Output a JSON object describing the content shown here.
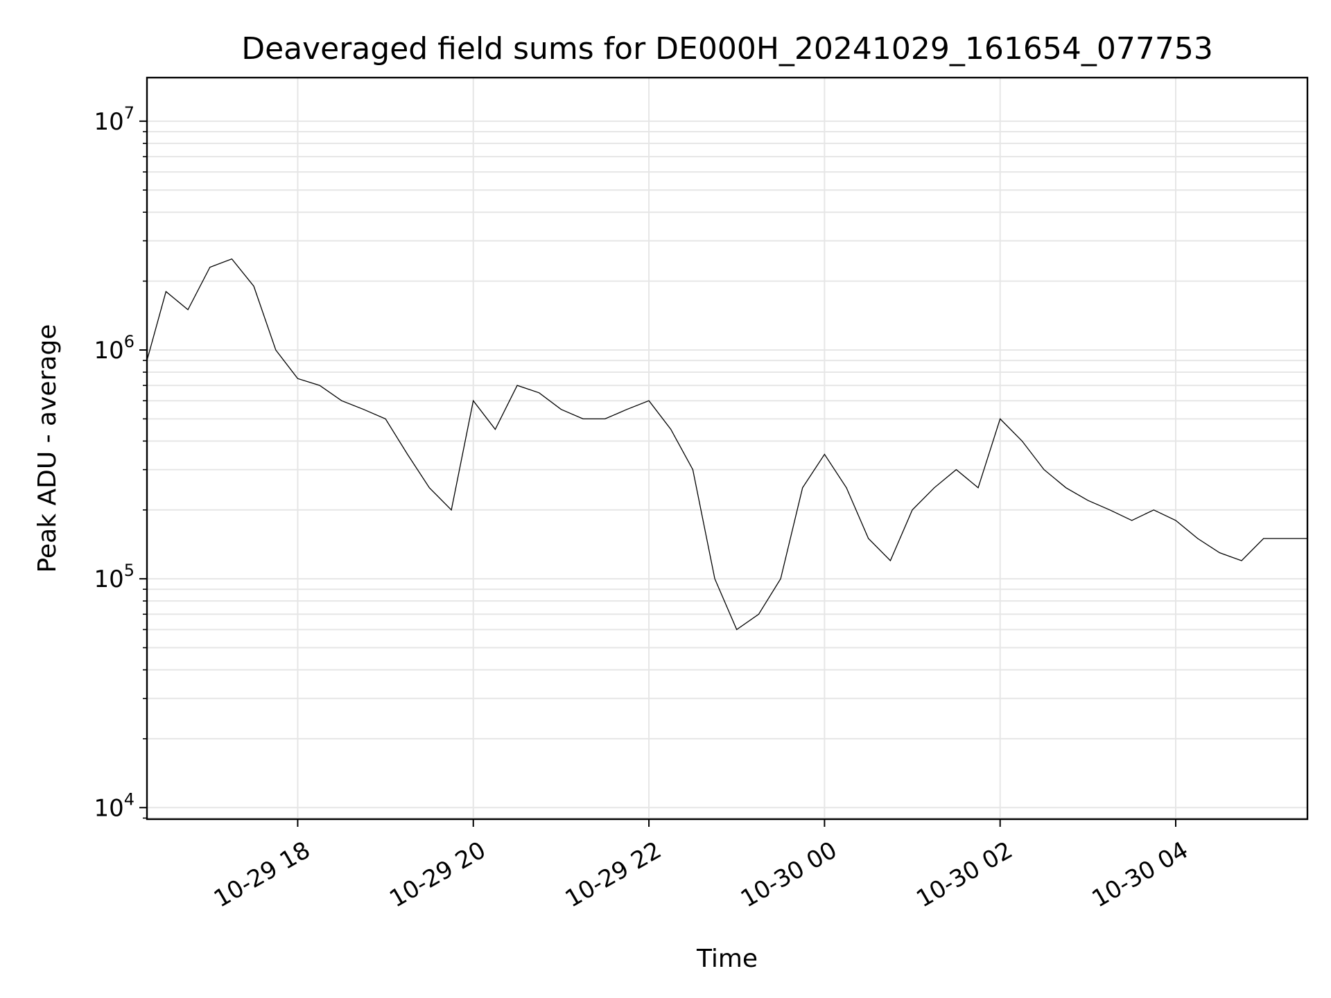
{
  "chart_data": {
    "type": "line",
    "title": "Deaveraged field sums for DE000H_20241029_161654_077753",
    "xlabel": "Time",
    "ylabel": "Peak ADU - average",
    "yscale": "log",
    "ylim": [
      8900,
      15500000
    ],
    "xlim": [
      "2024-10-29 16:17",
      "2024-10-30 05:30"
    ],
    "grid": true,
    "line_color": "#000000",
    "grid_color": "#e6e6e6",
    "x_ticks": [
      "2024-10-29 18:00",
      "2024-10-29 20:00",
      "2024-10-29 22:00",
      "2024-10-30 00:00",
      "2024-10-30 02:00",
      "2024-10-30 04:00"
    ],
    "x_tick_labels": [
      "10-29 18",
      "10-29 20",
      "10-29 22",
      "10-30 00",
      "10-30 02",
      "10-30 04"
    ],
    "y_ticks": [
      10000,
      100000,
      1000000,
      10000000
    ],
    "y_tick_labels": [
      {
        "base": "10",
        "exp": "4"
      },
      {
        "base": "10",
        "exp": "5"
      },
      {
        "base": "10",
        "exp": "6"
      },
      {
        "base": "10",
        "exp": "7"
      }
    ],
    "series": [
      {
        "points": [
          [
            "2024-10-29 16:17",
            900000
          ],
          [
            "2024-10-29 16:30",
            1800000
          ],
          [
            "2024-10-29 16:45",
            1500000
          ],
          [
            "2024-10-29 17:00",
            2300000
          ],
          [
            "2024-10-29 17:15",
            2500000
          ],
          [
            "2024-10-29 17:30",
            1900000
          ],
          [
            "2024-10-29 17:45",
            1000000
          ],
          [
            "2024-10-29 18:00",
            750000
          ],
          [
            "2024-10-29 18:15",
            700000
          ],
          [
            "2024-10-29 18:30",
            600000
          ],
          [
            "2024-10-29 18:45",
            550000
          ],
          [
            "2024-10-29 19:00",
            500000
          ],
          [
            "2024-10-29 19:15",
            350000
          ],
          [
            "2024-10-29 19:30",
            250000
          ],
          [
            "2024-10-29 19:45",
            200000
          ],
          [
            "2024-10-29 20:00",
            600000
          ],
          [
            "2024-10-29 20:15",
            450000
          ],
          [
            "2024-10-29 20:30",
            700000
          ],
          [
            "2024-10-29 20:45",
            650000
          ],
          [
            "2024-10-29 21:00",
            550000
          ],
          [
            "2024-10-29 21:15",
            500000
          ],
          [
            "2024-10-29 21:30",
            500000
          ],
          [
            "2024-10-29 21:45",
            550000
          ],
          [
            "2024-10-29 22:00",
            600000
          ],
          [
            "2024-10-29 22:15",
            450000
          ],
          [
            "2024-10-29 22:30",
            300000
          ],
          [
            "2024-10-29 22:45",
            100000
          ],
          [
            "2024-10-29 23:00",
            60000
          ],
          [
            "2024-10-29 23:15",
            70000
          ],
          [
            "2024-10-29 23:30",
            100000
          ],
          [
            "2024-10-29 23:45",
            250000
          ],
          [
            "2024-10-30 00:00",
            350000
          ],
          [
            "2024-10-30 00:15",
            250000
          ],
          [
            "2024-10-30 00:30",
            150000
          ],
          [
            "2024-10-30 00:45",
            120000
          ],
          [
            "2024-10-30 01:00",
            200000
          ],
          [
            "2024-10-30 01:15",
            250000
          ],
          [
            "2024-10-30 01:30",
            300000
          ],
          [
            "2024-10-30 01:45",
            250000
          ],
          [
            "2024-10-30 02:00",
            500000
          ],
          [
            "2024-10-30 02:15",
            400000
          ],
          [
            "2024-10-30 02:30",
            300000
          ],
          [
            "2024-10-30 02:45",
            250000
          ],
          [
            "2024-10-30 03:00",
            220000
          ],
          [
            "2024-10-30 03:15",
            200000
          ],
          [
            "2024-10-30 03:30",
            180000
          ],
          [
            "2024-10-30 03:45",
            200000
          ],
          [
            "2024-10-30 04:00",
            180000
          ],
          [
            "2024-10-30 04:15",
            150000
          ],
          [
            "2024-10-30 04:30",
            130000
          ],
          [
            "2024-10-30 04:45",
            120000
          ],
          [
            "2024-10-30 05:00",
            150000
          ],
          [
            "2024-10-30 05:15",
            150000
          ],
          [
            "2024-10-30 05:30",
            150000
          ]
        ]
      }
    ]
  }
}
